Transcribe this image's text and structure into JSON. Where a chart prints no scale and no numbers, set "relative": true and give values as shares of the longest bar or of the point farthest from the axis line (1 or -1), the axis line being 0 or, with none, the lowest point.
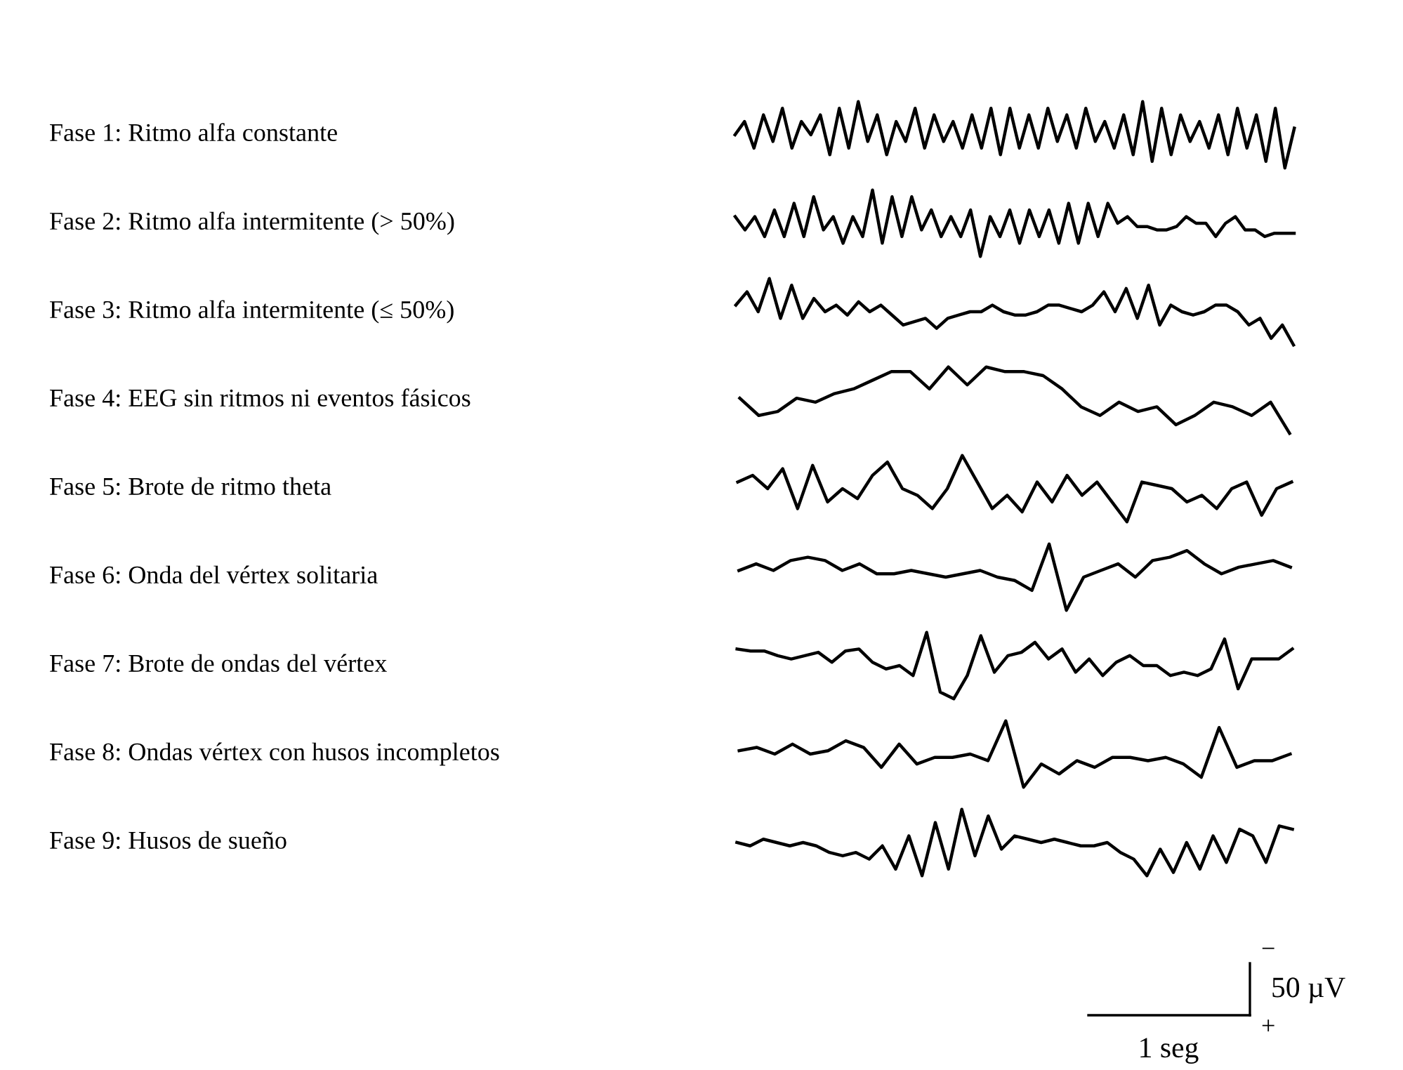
{
  "chart_data": [
    {
      "type": "line",
      "relative": true,
      "categories": [
        null,
        null,
        null,
        null,
        null,
        null,
        null,
        null,
        null,
        null,
        null,
        null,
        null,
        null,
        null,
        null,
        null,
        null,
        null,
        null,
        null,
        null,
        null,
        null,
        null,
        null,
        null,
        null,
        null,
        null,
        null,
        null,
        null,
        null,
        null,
        null,
        null,
        null,
        null,
        null,
        null,
        null,
        null,
        null,
        null,
        null,
        null,
        null,
        null,
        null,
        null,
        null,
        null,
        null,
        null,
        null,
        null,
        null,
        null,
        null
      ],
      "series": [
        {
          "name": "Fase 1: Ritmo alfa constante",
          "color": "#000000",
          "values": [
            0.5,
            0.7,
            0.3,
            0.8,
            0.4,
            0.9,
            0.3,
            0.7,
            0.5,
            0.8,
            0.2,
            0.9,
            0.3,
            1.0,
            0.4,
            0.8,
            0.2,
            0.7,
            0.4,
            0.9,
            0.3,
            0.8,
            0.4,
            0.7,
            0.3,
            0.8,
            0.3,
            0.9,
            0.2,
            0.9,
            0.3,
            0.8,
            0.3,
            0.9,
            0.4,
            0.8,
            0.3,
            0.9,
            0.4,
            0.7,
            0.3,
            0.8,
            0.2,
            1.0,
            0.1,
            0.9,
            0.2,
            0.8,
            0.4,
            0.7,
            0.3,
            0.8,
            0.2,
            0.9,
            0.3,
            0.8,
            0.1,
            0.9,
            0.0,
            0.6
          ]
        }
      ]
    },
    {
      "type": "line",
      "relative": true,
      "categories": [
        null,
        null,
        null,
        null,
        null,
        null,
        null,
        null,
        null,
        null,
        null,
        null,
        null,
        null,
        null,
        null,
        null,
        null,
        null,
        null,
        null,
        null,
        null,
        null,
        null,
        null,
        null,
        null,
        null,
        null,
        null,
        null,
        null,
        null,
        null,
        null,
        null,
        null,
        null,
        null,
        null,
        null,
        null,
        null,
        null,
        null,
        null,
        null,
        null,
        null,
        null,
        null,
        null,
        null,
        null,
        null,
        null,
        null
      ],
      "series": [
        {
          "name": "Fase 2: Ritmo alfa intermitente (> 50%)",
          "color": "#000000",
          "values": [
            0.6,
            0.4,
            0.6,
            0.3,
            0.7,
            0.3,
            0.8,
            0.3,
            0.9,
            0.4,
            0.6,
            0.2,
            0.6,
            0.3,
            1.0,
            0.2,
            0.9,
            0.3,
            0.9,
            0.4,
            0.7,
            0.3,
            0.6,
            0.3,
            0.7,
            0.0,
            0.6,
            0.3,
            0.7,
            0.2,
            0.7,
            0.3,
            0.7,
            0.2,
            0.8,
            0.2,
            0.8,
            0.3,
            0.8,
            0.5,
            0.6,
            0.45,
            0.45,
            0.4,
            0.4,
            0.45,
            0.6,
            0.5,
            0.5,
            0.3,
            0.5,
            0.6,
            0.4,
            0.4,
            0.3,
            0.35,
            0.35,
            0.35
          ]
        }
      ]
    },
    {
      "type": "line",
      "relative": true,
      "categories": [
        null,
        null,
        null,
        null,
        null,
        null,
        null,
        null,
        null,
        null,
        null,
        null,
        null,
        null,
        null,
        null,
        null,
        null,
        null,
        null,
        null,
        null,
        null,
        null,
        null,
        null,
        null,
        null,
        null,
        null,
        null,
        null,
        null,
        null,
        null,
        null,
        null,
        null,
        null,
        null,
        null,
        null,
        null,
        null,
        null,
        null,
        null,
        null,
        null,
        null,
        null
      ],
      "series": [
        {
          "name": "Fase 3: Ritmo alfa intermitente (≤ 50%)",
          "color": "#000000",
          "values": [
            0.6,
            0.8,
            0.5,
            1.0,
            0.4,
            0.9,
            0.4,
            0.7,
            0.5,
            0.6,
            0.45,
            0.65,
            0.5,
            0.6,
            0.45,
            0.3,
            0.35,
            0.4,
            0.25,
            0.4,
            0.45,
            0.5,
            0.5,
            0.6,
            0.5,
            0.45,
            0.45,
            0.5,
            0.6,
            0.6,
            0.55,
            0.5,
            0.6,
            0.8,
            0.5,
            0.85,
            0.4,
            0.9,
            0.3,
            0.6,
            0.5,
            0.45,
            0.5,
            0.6,
            0.6,
            0.5,
            0.3,
            0.4,
            0.1,
            0.3,
            0.0
          ]
        }
      ]
    },
    {
      "type": "line",
      "relative": true,
      "categories": [
        null,
        null,
        null,
        null,
        null,
        null,
        null,
        null,
        null,
        null,
        null,
        null,
        null,
        null,
        null,
        null,
        null,
        null,
        null,
        null,
        null,
        null,
        null,
        null,
        null,
        null,
        null,
        null,
        null,
        null
      ],
      "series": [
        {
          "name": "Fase 4: EEG sin ritmos ni eventos fásicos",
          "color": "#000000",
          "values": [
            0.53,
            0.27,
            0.33,
            0.53,
            0.47,
            0.6,
            0.67,
            0.8,
            0.93,
            0.93,
            0.67,
            1.0,
            0.73,
            1.0,
            0.93,
            0.93,
            0.87,
            0.67,
            0.4,
            0.27,
            0.47,
            0.33,
            0.4,
            0.13,
            0.27,
            0.47,
            0.4,
            0.27,
            0.47,
            0.0
          ]
        }
      ]
    },
    {
      "type": "line",
      "relative": true,
      "categories": [
        null,
        null,
        null,
        null,
        null,
        null,
        null,
        null,
        null,
        null,
        null,
        null,
        null,
        null,
        null,
        null,
        null,
        null,
        null,
        null,
        null,
        null,
        null,
        null,
        null,
        null,
        null,
        null,
        null,
        null,
        null,
        null,
        null,
        null,
        null,
        null,
        null,
        null
      ],
      "series": [
        {
          "name": "Fase 5: Brote de ritmo theta",
          "color": "#000000",
          "values": [
            0.6,
            0.7,
            0.5,
            0.8,
            0.2,
            0.85,
            0.3,
            0.5,
            0.35,
            0.7,
            0.9,
            0.5,
            0.4,
            0.2,
            0.5,
            1.0,
            0.6,
            0.2,
            0.4,
            0.15,
            0.6,
            0.3,
            0.7,
            0.4,
            0.6,
            0.3,
            0.0,
            0.6,
            0.55,
            0.5,
            0.3,
            0.4,
            0.2,
            0.5,
            0.6,
            0.1,
            0.5,
            0.6
          ]
        }
      ]
    },
    {
      "type": "line",
      "relative": true,
      "categories": [
        null,
        null,
        null,
        null,
        null,
        null,
        null,
        null,
        null,
        null,
        null,
        null,
        null,
        null,
        null,
        null,
        null,
        null,
        null,
        null,
        null,
        null,
        null,
        null,
        null,
        null,
        null,
        null,
        null,
        null,
        null,
        null,
        null
      ],
      "series": [
        {
          "name": "Fase 6: Onda del vértex solitaria",
          "color": "#000000",
          "values": [
            0.6,
            0.7,
            0.6,
            0.75,
            0.8,
            0.75,
            0.6,
            0.7,
            0.55,
            0.55,
            0.6,
            0.55,
            0.5,
            0.55,
            0.6,
            0.5,
            0.45,
            0.3,
            1.0,
            0.0,
            0.5,
            0.6,
            0.7,
            0.5,
            0.75,
            0.8,
            0.9,
            0.7,
            0.55,
            0.65,
            0.7,
            0.75,
            0.65
          ]
        }
      ]
    },
    {
      "type": "line",
      "relative": true,
      "categories": [
        null,
        null,
        null,
        null,
        null,
        null,
        null,
        null,
        null,
        null,
        null,
        null,
        null,
        null,
        null,
        null,
        null,
        null,
        null,
        null,
        null,
        null,
        null,
        null,
        null,
        null,
        null,
        null,
        null,
        null,
        null,
        null,
        null,
        null,
        null,
        null,
        null,
        null,
        null,
        null,
        null,
        null
      ],
      "series": [
        {
          "name": "Fase 7: Brote de ondas del vértex",
          "color": "#000000",
          "values": [
            0.75,
            0.72,
            0.72,
            0.65,
            0.6,
            0.65,
            0.7,
            0.55,
            0.72,
            0.75,
            0.55,
            0.45,
            0.5,
            0.35,
            1.0,
            0.1,
            0.0,
            0.35,
            0.95,
            0.4,
            0.65,
            0.7,
            0.85,
            0.6,
            0.75,
            0.4,
            0.6,
            0.35,
            0.55,
            0.65,
            0.5,
            0.5,
            0.35,
            0.4,
            0.35,
            0.45,
            0.9,
            0.15,
            0.6,
            0.6,
            0.6,
            0.75
          ]
        }
      ]
    },
    {
      "type": "line",
      "relative": true,
      "categories": [
        null,
        null,
        null,
        null,
        null,
        null,
        null,
        null,
        null,
        null,
        null,
        null,
        null,
        null,
        null,
        null,
        null,
        null,
        null,
        null,
        null,
        null,
        null,
        null,
        null,
        null,
        null,
        null,
        null,
        null,
        null,
        null
      ],
      "series": [
        {
          "name": "Fase 8: Ondas vértex con husos incompletos",
          "color": "#000000",
          "values": [
            0.55,
            0.6,
            0.5,
            0.65,
            0.5,
            0.55,
            0.7,
            0.6,
            0.3,
            0.65,
            0.35,
            0.45,
            0.45,
            0.5,
            0.4,
            1.0,
            0.0,
            0.35,
            0.2,
            0.4,
            0.3,
            0.45,
            0.45,
            0.4,
            0.45,
            0.35,
            0.15,
            0.9,
            0.3,
            0.4,
            0.4,
            0.5
          ]
        }
      ]
    },
    {
      "type": "line",
      "relative": true,
      "categories": [
        null,
        null,
        null,
        null,
        null,
        null,
        null,
        null,
        null,
        null,
        null,
        null,
        null,
        null,
        null,
        null,
        null,
        null,
        null,
        null,
        null,
        null,
        null,
        null,
        null,
        null,
        null,
        null,
        null,
        null,
        null,
        null,
        null,
        null,
        null,
        null,
        null,
        null,
        null,
        null,
        null,
        null,
        null
      ],
      "series": [
        {
          "name": "Fase 9: Husos de sueño",
          "color": "#000000",
          "values": [
            0.5,
            0.45,
            0.55,
            0.5,
            0.45,
            0.5,
            0.45,
            0.35,
            0.3,
            0.35,
            0.25,
            0.45,
            0.1,
            0.6,
            0.0,
            0.8,
            0.1,
            1.0,
            0.3,
            0.9,
            0.4,
            0.6,
            0.55,
            0.5,
            0.55,
            0.5,
            0.45,
            0.45,
            0.5,
            0.35,
            0.25,
            0.0,
            0.4,
            0.05,
            0.5,
            0.1,
            0.6,
            0.2,
            0.7,
            0.6,
            0.2,
            0.75,
            0.7
          ]
        }
      ],
      "annotations": [
        "−",
        "50 µV",
        "+",
        "1 seg"
      ]
    }
  ]
}
